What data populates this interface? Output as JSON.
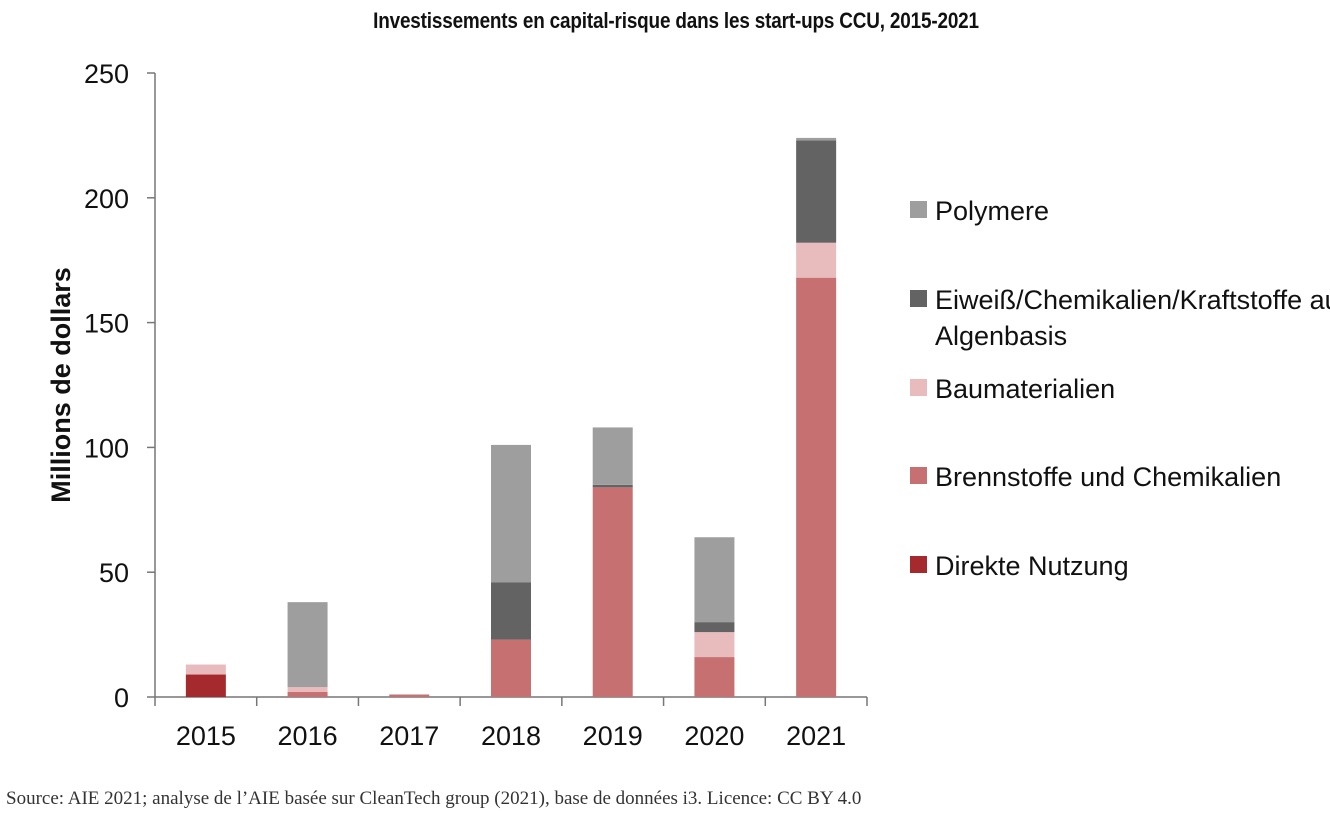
{
  "chart_data": {
    "type": "bar",
    "stacked": true,
    "title": "Investissements en capital-risque dans les start-ups CCU, 2015-2021",
    "ylabel": "Millions de dollars",
    "xlabel": "",
    "ylim": [
      0,
      250
    ],
    "yticks": [
      "0",
      "50",
      "100",
      "150",
      "200",
      "250"
    ],
    "categories": [
      "2015",
      "2016",
      "2017",
      "2018",
      "2019",
      "2020",
      "2021"
    ],
    "series": [
      {
        "name": "Direkte Nutzung",
        "color": "#a52a2d",
        "values": [
          9,
          0,
          0,
          0,
          0,
          0,
          0
        ]
      },
      {
        "name": "Brennstoffe und Chemikalien",
        "color": "#c67072",
        "values": [
          0,
          2,
          1,
          23,
          84,
          16,
          168
        ]
      },
      {
        "name": "Baumaterialien",
        "color": "#e8bbbc",
        "values": [
          4,
          2,
          0,
          0,
          0,
          10,
          14
        ]
      },
      {
        "name": "Eiweiß/Chemikalien/Kraftstoffe auf Algenbasis",
        "color": "#636363",
        "values": [
          0,
          0,
          0,
          23,
          1,
          4,
          41
        ]
      },
      {
        "name": "Polymere",
        "color": "#9e9e9e",
        "values": [
          0,
          34,
          0,
          55,
          23,
          34,
          1
        ]
      }
    ],
    "legend_position": "right",
    "legend_order": [
      "Polymere",
      "Eiweiß/Chemikalien/Kraftstoffe auf Algenbasis",
      "Baumaterialien",
      "Brennstoffe und Chemikalien",
      "Direkte Nutzung"
    ],
    "grid": false
  },
  "source_note": "Source: AIE 2021; analyse de l’AIE basée sur CleanTech group (2021), base de données i3. Licence: CC BY 4.0"
}
